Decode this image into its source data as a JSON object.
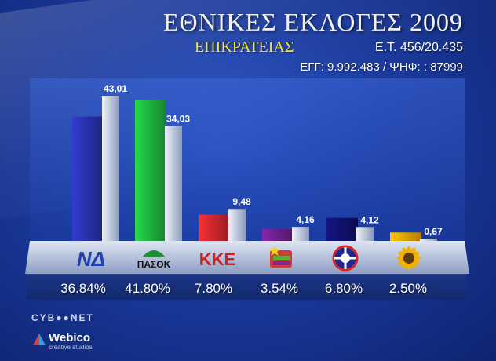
{
  "header": {
    "title": "ΕΘΝΙΚΕΣ ΕΚΛΟΓΕΣ 2009",
    "subtitle": "ΕΠΙΚΡΑΤΕΙΑΣ",
    "et": "Ε.Τ. 456/20.435",
    "egg": "ΕΓΓ: 9.992.483 / ΨΗΦ: : 87999"
  },
  "chart_data": {
    "type": "bar",
    "categories": [
      "ΝΔ",
      "ΠΑΣΟΚ",
      "ΚΚΕ",
      "ΣΥΡΙΖΑ",
      "ΛΑΟΣ",
      "ΟΙΚΟΛΟΓΟΙ ΠΡΑΣΙΝΟΙ"
    ],
    "series": [
      {
        "values": [
          36.84,
          41.8,
          7.8,
          3.54,
          6.8,
          2.5
        ]
      },
      {
        "values": [
          43.01,
          34.03,
          9.48,
          4.16,
          4.12,
          0.67
        ]
      }
    ],
    "current_labels": [
      "36.84%",
      "41.80%",
      "7.80%",
      "3.54%",
      "6.80%",
      "2.50%"
    ],
    "previous_labels": [
      "43,01",
      "34,03",
      "9,48",
      "4,16",
      "4,12",
      "0,67"
    ],
    "party_logos": [
      "ΝΔ",
      "ΠΑΣΟΚ",
      "ΚΚΕ",
      "ΣΥΡΙΖΑ",
      "ΛΑΟΣ",
      "ΟΠ"
    ],
    "colors": [
      "#2830a8",
      "#1fae3e",
      "#c8262a",
      "#6a1f8a",
      "#10106a",
      "#f2a000"
    ],
    "previous_color": "#c9d3e6",
    "ylim": [
      0,
      50
    ]
  },
  "footer": {
    "brand1": "CYB●●NET",
    "brand2": "Webico",
    "brand2_sub": "creative studios"
  }
}
